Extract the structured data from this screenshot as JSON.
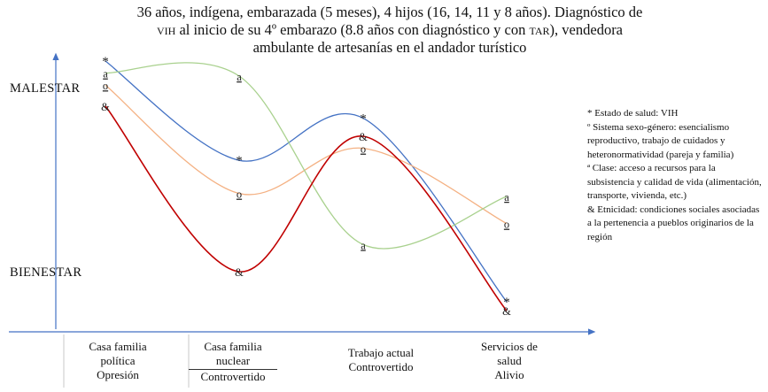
{
  "title": {
    "line1": "36 años, indígena, embarazada (5 meses), 4 hijos (16, 14, 11 y 8 años). Diagnóstico de",
    "line2_sc1": "vih",
    "line2_mid": " al inicio de su 4º embarazo (8.8 años con diagnóstico y  con ",
    "line2_sc2": "tar",
    "line2_end": "), vendedora",
    "line3": "ambulante de artesanías en el andador turístico"
  },
  "axis": {
    "top_label": "MALESTAR",
    "bottom_label": "BIENESTAR"
  },
  "categories": [
    {
      "lines": [
        "Casa familia",
        "política",
        "Opresión"
      ]
    },
    {
      "lines": [
        "Casa familia",
        "nuclear",
        "Controvertido"
      ]
    },
    {
      "lines": [
        "Trabajo actual",
        "Controvertido"
      ]
    },
    {
      "lines": [
        "Servicios de",
        "salud",
        "Alivio"
      ]
    }
  ],
  "legend": {
    "items": [
      "* Estado de salud: VIH",
      "º Sistema sexo-género: esencialismo reproductivo, trabajo de cuidados y heteronormatividad (pareja y familia)",
      "ª Clase: acceso a recursos para la subsistencia y calidad de vida (alimentación, transporte, vivienda, etc.)",
      "& Etnicidad: condiciones sociales asociadas a la pertenencia a pueblos originarios de la región"
    ]
  },
  "colors": {
    "axis": "#4472c4",
    "salud": "#4472c4",
    "sexo_genero": "#f4b183",
    "clase": "#a9d18e",
    "etnicidad": "#c00000"
  },
  "chart_data": {
    "type": "line",
    "title": "36 años, indígena, embarazada (5 meses), 4 hijos (16, 14, 11 y 8 años). Diagnóstico de VIH al inicio de su 4º embarazo (8.8 años con diagnóstico y  con TAR), vendedora ambulante de artesanías en el andador turístico",
    "x": [
      "Casa familia política Opresión",
      "Casa familia nuclear Controvertido",
      "Trabajo actual Controvertido",
      "Servicios de salud Alivio"
    ],
    "ylabel_top": "MALESTAR",
    "ylabel_bottom": "BIENESTAR",
    "ylim": [
      0,
      10
    ],
    "series": [
      {
        "name": "Estado de salud: VIH",
        "marker": "*",
        "color": "#4472c4",
        "values": [
          9.0,
          5.7,
          7.1,
          1.0
        ]
      },
      {
        "name": "Sistema sexo-género",
        "marker": "º",
        "color": "#f4b183",
        "values": [
          8.2,
          4.6,
          6.1,
          3.6
        ]
      },
      {
        "name": "Clase",
        "marker": "ª",
        "color": "#a9d18e",
        "values": [
          8.6,
          8.5,
          2.9,
          4.5
        ]
      },
      {
        "name": "Etnicidad",
        "marker": "&",
        "color": "#c00000",
        "values": [
          7.5,
          2.0,
          6.5,
          0.7
        ]
      }
    ]
  }
}
